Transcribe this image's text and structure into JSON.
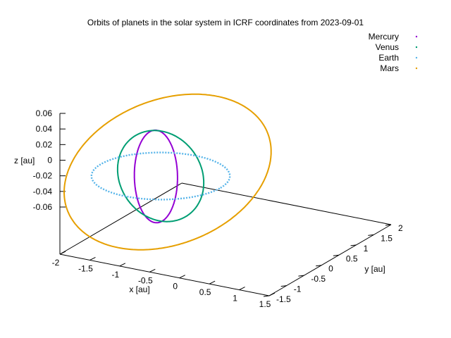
{
  "chart_data": {
    "type": "scatter",
    "projection": "3d",
    "title": "Orbits of planets in the solar system in ICRF coordinates from 2023-09-01",
    "xlabel": "x [au]",
    "ylabel": "y [au]",
    "zlabel": "z [au]",
    "xlim": [
      -2,
      1.5
    ],
    "ylim": [
      -1.5,
      2
    ],
    "zlim": [
      -0.06,
      0.06
    ],
    "x_ticks": [
      "-2",
      "-1.5",
      "-1",
      "-0.5",
      "0",
      "0.5",
      "1",
      "1.5"
    ],
    "y_ticks": [
      "-1.5",
      "-1",
      "-0.5",
      "0",
      "0.5",
      "1",
      "1.5",
      "2"
    ],
    "z_ticks": [
      "0.06",
      "0.04",
      "0.02",
      "0",
      "-0.02",
      "-0.04",
      "-0.06"
    ],
    "grid": false,
    "legend_position": "top-right",
    "series": [
      {
        "name": "Mercury",
        "color": "#9400d3",
        "center": [
          -0.05,
          -0.05,
          0.0
        ],
        "radius_x": 0.36,
        "radius_y": 0.04,
        "z_amp": 0.058
      },
      {
        "name": "Venus",
        "color": "#009e73",
        "center": [
          0.0,
          0.0,
          0.0
        ],
        "radius_x": 0.72,
        "radius_y": 0.05,
        "z_amp": 0.056
      },
      {
        "name": "Earth",
        "color": "#56b4e9",
        "center": [
          0.0,
          0.0,
          0.0
        ],
        "radius_x": 1.0,
        "radius_y": 1.0,
        "z_amp": 0.0
      },
      {
        "name": "Mars",
        "color": "#e69f00",
        "center": [
          0.0,
          0.2,
          0.0
        ],
        "radius_x": 1.52,
        "radius_y": 1.42,
        "z_amp": 0.06
      }
    ]
  }
}
